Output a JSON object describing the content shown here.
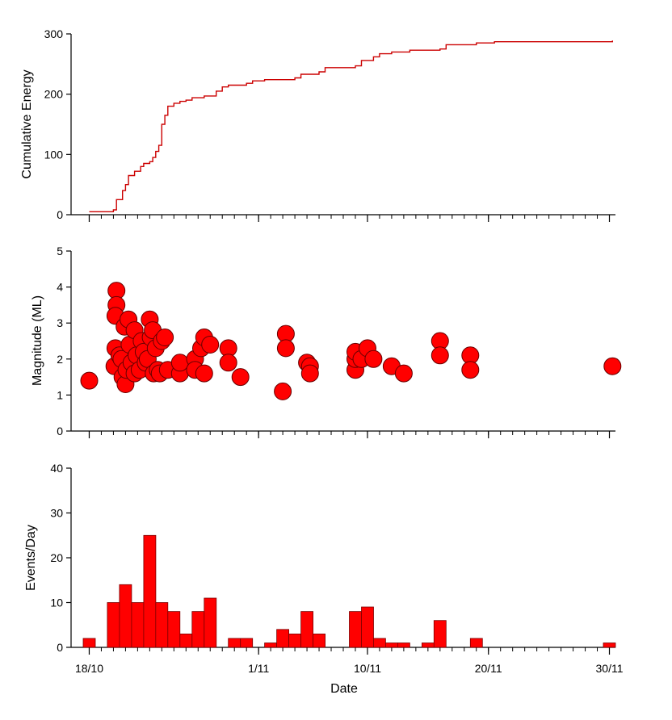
{
  "chart_data": [
    {
      "type": "line",
      "ylabel": "Cumulative Energy",
      "xlabel": "",
      "ylim": [
        0,
        300
      ],
      "yticks": [
        0,
        100,
        200,
        300
      ],
      "line_color": "#cc0000",
      "points": [
        [
          "2016-10-18T12:00",
          5
        ],
        [
          "2016-10-20T12:00",
          8
        ],
        [
          "2016-10-20T18:00",
          25
        ],
        [
          "2016-10-21T06:00",
          40
        ],
        [
          "2016-10-21T12:00",
          50
        ],
        [
          "2016-10-21T18:00",
          65
        ],
        [
          "2016-10-22T06:00",
          72
        ],
        [
          "2016-10-22T18:00",
          80
        ],
        [
          "2016-10-23T00:00",
          85
        ],
        [
          "2016-10-23T12:00",
          88
        ],
        [
          "2016-10-23T18:00",
          95
        ],
        [
          "2016-10-24T00:00",
          105
        ],
        [
          "2016-10-24T06:00",
          115
        ],
        [
          "2016-10-24T12:00",
          150
        ],
        [
          "2016-10-24T18:00",
          165
        ],
        [
          "2016-10-25T00:00",
          180
        ],
        [
          "2016-10-25T12:00",
          185
        ],
        [
          "2016-10-26T00:00",
          188
        ],
        [
          "2016-10-26T12:00",
          190
        ],
        [
          "2016-10-27T00:00",
          194
        ],
        [
          "2016-10-28T00:00",
          197
        ],
        [
          "2016-10-29T00:00",
          205
        ],
        [
          "2016-10-29T12:00",
          212
        ],
        [
          "2016-10-30T00:00",
          215
        ],
        [
          "2016-10-31T12:00",
          218
        ],
        [
          "2016-11-01T00:00",
          222
        ],
        [
          "2016-11-02T00:00",
          224
        ],
        [
          "2016-11-04T12:00",
          227
        ],
        [
          "2016-11-05T00:00",
          233
        ],
        [
          "2016-11-06T12:00",
          237
        ],
        [
          "2016-11-07T00:00",
          244
        ],
        [
          "2016-11-09T12:00",
          247
        ],
        [
          "2016-11-10T00:00",
          256
        ],
        [
          "2016-11-11T00:00",
          262
        ],
        [
          "2016-11-11T12:00",
          267
        ],
        [
          "2016-11-12T12:00",
          270
        ],
        [
          "2016-11-14T00:00",
          273
        ],
        [
          "2016-11-16T12:00",
          275
        ],
        [
          "2016-11-17T00:00",
          282
        ],
        [
          "2016-11-19T12:00",
          285
        ],
        [
          "2016-11-21T00:00",
          287
        ],
        [
          "2016-11-30T18:00",
          289
        ]
      ]
    },
    {
      "type": "scatter",
      "ylabel": "Magnitude (ML)",
      "xlabel": "",
      "ylim": [
        0,
        5
      ],
      "yticks": [
        0,
        1,
        2,
        3,
        4,
        5
      ],
      "marker_color": "#ff0000",
      "marker_edge": "#660000",
      "points": [
        [
          "2016-10-18T12:00",
          1.4
        ],
        [
          "2016-10-20T18:00",
          3.9
        ],
        [
          "2016-10-20T18:00",
          3.5
        ],
        [
          "2016-10-20T16:00",
          3.2
        ],
        [
          "2016-10-20T16:00",
          2.3
        ],
        [
          "2016-10-20T14:00",
          1.8
        ],
        [
          "2016-10-21T00:00",
          2.1
        ],
        [
          "2016-10-21T04:00",
          2.0
        ],
        [
          "2016-10-21T06:00",
          1.5
        ],
        [
          "2016-10-21T10:00",
          2.9
        ],
        [
          "2016-10-21T12:00",
          1.3
        ],
        [
          "2016-10-21T14:00",
          1.7
        ],
        [
          "2016-10-21T18:00",
          3.1
        ],
        [
          "2016-10-21T20:00",
          2.4
        ],
        [
          "2016-10-22T00:00",
          1.9
        ],
        [
          "2016-10-22T06:00",
          2.8
        ],
        [
          "2016-10-22T06:00",
          1.6
        ],
        [
          "2016-10-22T10:00",
          2.1
        ],
        [
          "2016-10-22T16:00",
          1.7
        ],
        [
          "2016-10-22T20:00",
          2.5
        ],
        [
          "2016-10-23T00:00",
          2.2
        ],
        [
          "2016-10-23T04:00",
          1.9
        ],
        [
          "2016-10-23T08:00",
          2.0
        ],
        [
          "2016-10-23T12:00",
          3.1
        ],
        [
          "2016-10-23T14:00",
          2.6
        ],
        [
          "2016-10-23T18:00",
          2.8
        ],
        [
          "2016-10-23T20:00",
          1.6
        ],
        [
          "2016-10-24T00:00",
          2.3
        ],
        [
          "2016-10-24T04:00",
          1.7
        ],
        [
          "2016-10-24T08:00",
          1.6
        ],
        [
          "2016-10-24T12:00",
          2.5
        ],
        [
          "2016-10-24T18:00",
          2.6
        ],
        [
          "2016-10-25T00:00",
          1.7
        ],
        [
          "2016-10-26T00:00",
          1.6
        ],
        [
          "2016-10-26T00:00",
          1.9
        ],
        [
          "2016-10-27T06:00",
          2.0
        ],
        [
          "2016-10-27T06:00",
          1.7
        ],
        [
          "2016-10-27T18:00",
          2.3
        ],
        [
          "2016-10-28T00:00",
          2.6
        ],
        [
          "2016-10-28T00:00",
          1.6
        ],
        [
          "2016-10-28T12:00",
          2.4
        ],
        [
          "2016-10-30T00:00",
          2.3
        ],
        [
          "2016-10-30T00:00",
          1.9
        ],
        [
          "2016-10-31T00:00",
          1.5
        ],
        [
          "2016-11-03T12:00",
          1.1
        ],
        [
          "2016-11-03T18:00",
          2.7
        ],
        [
          "2016-11-03T18:00",
          2.3
        ],
        [
          "2016-11-05T12:00",
          1.9
        ],
        [
          "2016-11-05T18:00",
          1.8
        ],
        [
          "2016-11-05T18:00",
          1.6
        ],
        [
          "2016-11-09T12:00",
          1.7
        ],
        [
          "2016-11-09T12:00",
          2.0
        ],
        [
          "2016-11-09T12:00",
          2.2
        ],
        [
          "2016-11-10T00:00",
          2.0
        ],
        [
          "2016-11-10T12:00",
          2.3
        ],
        [
          "2016-11-11T00:00",
          2.0
        ],
        [
          "2016-11-12T12:00",
          1.8
        ],
        [
          "2016-11-13T12:00",
          1.6
        ],
        [
          "2016-11-16T12:00",
          2.5
        ],
        [
          "2016-11-16T12:00",
          2.1
        ],
        [
          "2016-11-19T00:00",
          2.1
        ],
        [
          "2016-11-19T00:00",
          1.7
        ],
        [
          "2016-11-30T18:00",
          1.8
        ]
      ]
    },
    {
      "type": "bar",
      "ylabel": "Events/Day",
      "xlabel": "Date",
      "ylim": [
        0,
        40
      ],
      "yticks": [
        0,
        10,
        20,
        30,
        40
      ],
      "bar_color": "#ff0000",
      "bar_edge": "#7a0000",
      "x_tick_labels": [
        "18/10",
        "1/11",
        "10/11",
        "20/11",
        "30/11"
      ],
      "x_tick_dates": [
        "2016-10-18",
        "2016-11-01",
        "2016-11-10",
        "2016-11-20",
        "2016-11-30"
      ],
      "bins": [
        [
          "2016-10-18",
          2
        ],
        [
          "2016-10-19",
          0
        ],
        [
          "2016-10-20",
          10
        ],
        [
          "2016-10-21",
          14
        ],
        [
          "2016-10-22",
          10
        ],
        [
          "2016-10-23",
          25
        ],
        [
          "2016-10-24",
          10
        ],
        [
          "2016-10-25",
          8
        ],
        [
          "2016-10-26",
          3
        ],
        [
          "2016-10-27",
          8
        ],
        [
          "2016-10-28",
          11
        ],
        [
          "2016-10-29",
          0
        ],
        [
          "2016-10-30",
          2
        ],
        [
          "2016-10-31",
          2
        ],
        [
          "2016-11-01",
          0
        ],
        [
          "2016-11-02",
          1
        ],
        [
          "2016-11-03",
          4
        ],
        [
          "2016-11-04",
          3
        ],
        [
          "2016-11-05",
          8
        ],
        [
          "2016-11-06",
          3
        ],
        [
          "2016-11-07",
          0
        ],
        [
          "2016-11-08",
          0
        ],
        [
          "2016-11-09",
          8
        ],
        [
          "2016-11-10",
          9
        ],
        [
          "2016-11-11",
          2
        ],
        [
          "2016-11-12",
          1
        ],
        [
          "2016-11-13",
          1
        ],
        [
          "2016-11-14",
          0
        ],
        [
          "2016-11-15",
          1
        ],
        [
          "2016-11-16",
          6
        ],
        [
          "2016-11-17",
          0
        ],
        [
          "2016-11-18",
          0
        ],
        [
          "2016-11-19",
          2
        ],
        [
          "2016-11-20",
          0
        ],
        [
          "2016-11-21",
          0
        ],
        [
          "2016-11-22",
          0
        ],
        [
          "2016-11-23",
          0
        ],
        [
          "2016-11-24",
          0
        ],
        [
          "2016-11-25",
          0
        ],
        [
          "2016-11-26",
          0
        ],
        [
          "2016-11-27",
          0
        ],
        [
          "2016-11-28",
          0
        ],
        [
          "2016-11-29",
          0
        ],
        [
          "2016-11-30",
          1
        ]
      ]
    }
  ],
  "x_axis": {
    "xlim": [
      "2016-10-17T00:00",
      "2016-12-01T00:00"
    ],
    "tick_labels": [
      "18/10",
      "1/11",
      "10/11",
      "20/11",
      "30/11"
    ],
    "tick_dates": [
      "2016-10-18",
      "2016-11-01",
      "2016-11-10",
      "2016-11-20",
      "2016-11-30"
    ],
    "minor_tick_days": 1
  }
}
